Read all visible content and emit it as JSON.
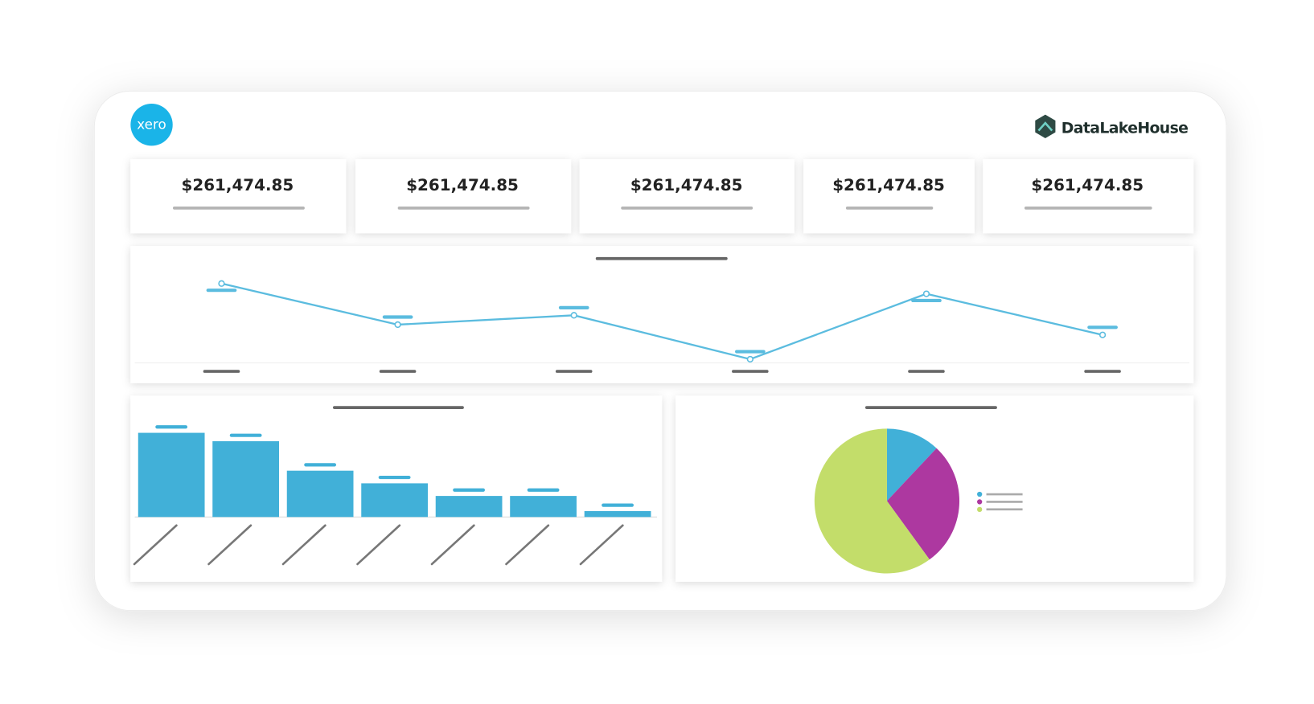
{
  "header": {
    "left_logo": "xero",
    "right_logo": "DataLakeHouse"
  },
  "kpis": [
    "$261,474.85",
    "$261,474.85",
    "$261,474.85",
    "$261,474.85",
    "$261,474.85"
  ],
  "chart_data": [
    {
      "type": "line",
      "values": [
        85,
        41,
        51,
        4,
        74,
        30
      ],
      "ylim": [
        0,
        100
      ],
      "color": "#5bbcdf"
    },
    {
      "type": "bar",
      "values": [
        100,
        90,
        55,
        40,
        25,
        25,
        7
      ],
      "ylim": [
        0,
        100
      ],
      "color": "#41b0d8"
    },
    {
      "type": "pie",
      "values": [
        12,
        28,
        60
      ],
      "colors": [
        "#41b0d8",
        "#ad38a0",
        "#c3dd6a"
      ]
    }
  ]
}
